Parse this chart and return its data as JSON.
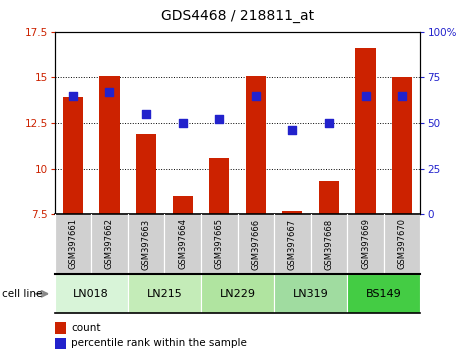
{
  "title": "GDS4468 / 218811_at",
  "samples": [
    "GSM397661",
    "GSM397662",
    "GSM397663",
    "GSM397664",
    "GSM397665",
    "GSM397666",
    "GSM397667",
    "GSM397668",
    "GSM397669",
    "GSM397670"
  ],
  "count_values": [
    13.9,
    15.1,
    11.9,
    8.5,
    10.6,
    15.1,
    7.7,
    9.3,
    16.6,
    15.0
  ],
  "percentile_values": [
    65,
    67,
    55,
    50,
    52,
    65,
    46,
    50,
    65,
    65
  ],
  "ylim_left": [
    7.5,
    17.5
  ],
  "ylim_right": [
    0,
    100
  ],
  "yticks_left": [
    7.5,
    10.0,
    12.5,
    15.0,
    17.5
  ],
  "yticks_right": [
    0,
    25,
    50,
    75,
    100
  ],
  "ytick_labels_left": [
    "7.5",
    "10",
    "12.5",
    "15",
    "17.5"
  ],
  "ytick_labels_right": [
    "0",
    "25",
    "50",
    "75",
    "100%"
  ],
  "cell_lines": [
    {
      "name": "LN018",
      "start": 0,
      "end": 1,
      "color": "#d8f4d8"
    },
    {
      "name": "LN215",
      "start": 2,
      "end": 3,
      "color": "#c4ecb8"
    },
    {
      "name": "LN229",
      "start": 4,
      "end": 5,
      "color": "#b0e4a0"
    },
    {
      "name": "LN319",
      "start": 6,
      "end": 7,
      "color": "#a0dca0"
    },
    {
      "name": "BS149",
      "start": 8,
      "end": 9,
      "color": "#44cc44"
    }
  ],
  "bar_color": "#cc2200",
  "dot_color": "#2222cc",
  "bar_bottom": 7.5,
  "bar_width": 0.55,
  "dot_size": 30,
  "bg_color": "#ffffff",
  "tick_label_color_left": "#cc2200",
  "tick_label_color_right": "#2222cc",
  "legend_count_label": "count",
  "legend_pct_label": "percentile rank within the sample",
  "cell_line_label": "cell line",
  "sample_bg_color": "#d0d0d0"
}
